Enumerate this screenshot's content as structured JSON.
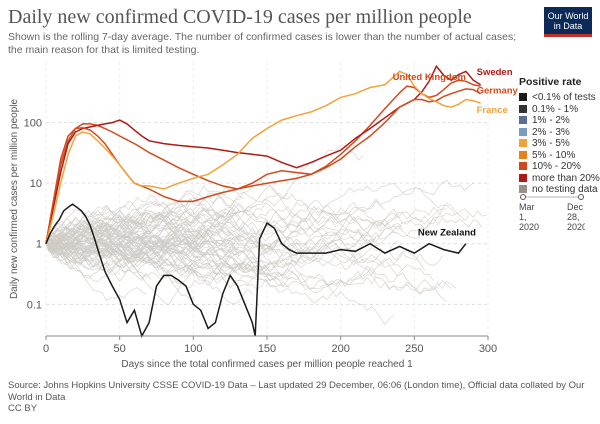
{
  "header": {
    "title": "Daily new confirmed COVID-19 cases per million people",
    "subtitle": "Shown is the rolling 7-day average. The number of confirmed cases is lower than the number of actual cases; the main reason for that is limited testing.",
    "logo_line1": "Our World",
    "logo_line2": "in Data"
  },
  "legend": {
    "title": "Positive rate",
    "items": [
      {
        "label": "<0.1% of tests",
        "color": "#1a1a1a"
      },
      {
        "label": "0.1% - 1%",
        "color": "#333333"
      },
      {
        "label": "1% - 2%",
        "color": "#5b6d97"
      },
      {
        "label": "2% - 3%",
        "color": "#7c9ac4"
      },
      {
        "label": "3% - 5%",
        "color": "#f2a23a"
      },
      {
        "label": "5% - 10%",
        "color": "#e8801d"
      },
      {
        "label": "10% - 20%",
        "color": "#d24a1b"
      },
      {
        "label": "more than 20%",
        "color": "#b01a16"
      },
      {
        "label": "no testing data",
        "color": "#999089"
      }
    ]
  },
  "time_slider": {
    "start_label": "Mar 1, 2020",
    "end_label": "Dec 28, 2020",
    "start_line1": "Mar",
    "start_line2": "1,",
    "start_line3": "2020",
    "end_line1": "Dec",
    "end_line2": "28,",
    "end_line3": "2020"
  },
  "footer": {
    "source": "Source: Johns Hopkins University CSSE COVID-19 Data – Last updated 29 December, 06:06 (London time), Official data collated by Our World in Data",
    "license": "CC BY"
  },
  "chart_data": {
    "type": "line",
    "title": "Daily new confirmed COVID-19 cases per million people",
    "xlabel": "Days since the total confirmed cases per million people reached 1",
    "ylabel": "Daily new confirmed cases per million people",
    "y_scale": "log",
    "xlim": [
      0,
      300
    ],
    "ylim": [
      0.03,
      1000
    ],
    "x_ticks": [
      0,
      50,
      100,
      150,
      200,
      250,
      300
    ],
    "x_tick_labels": [
      "0",
      "50",
      "100",
      "150",
      "200",
      "250",
      "300"
    ],
    "y_ticks": [
      0.1,
      1,
      10,
      100
    ],
    "y_tick_labels": [
      "0.1",
      "1",
      "10",
      "100"
    ],
    "grid": true,
    "series": [
      {
        "name": "United Kingdom",
        "color": "#d24a1b",
        "x": [
          0,
          5,
          10,
          15,
          20,
          25,
          30,
          35,
          40,
          45,
          50,
          55,
          60,
          65,
          70,
          80,
          90,
          100,
          110,
          120,
          130,
          140,
          150,
          160,
          170,
          180,
          190,
          200,
          210,
          220,
          230,
          240,
          245,
          250,
          255,
          260,
          265,
          270,
          275,
          280,
          285,
          290,
          295
        ],
        "y": [
          1,
          5,
          20,
          50,
          80,
          95,
          95,
          90,
          80,
          70,
          60,
          52,
          45,
          38,
          32,
          24,
          18,
          14,
          11,
          9,
          8,
          9,
          10,
          11,
          12,
          14,
          19,
          30,
          50,
          90,
          170,
          310,
          400,
          380,
          300,
          260,
          280,
          350,
          450,
          500,
          480,
          420,
          400
        ]
      },
      {
        "name": "Sweden",
        "color": "#b01a16",
        "x": [
          0,
          5,
          10,
          15,
          20,
          25,
          30,
          35,
          40,
          45,
          50,
          55,
          60,
          65,
          70,
          80,
          90,
          100,
          110,
          120,
          130,
          140,
          150,
          160,
          170,
          180,
          190,
          200,
          210,
          220,
          230,
          240,
          250,
          255,
          260,
          265,
          270,
          275,
          280,
          285,
          290,
          295
        ],
        "y": [
          1,
          4,
          15,
          45,
          70,
          80,
          85,
          90,
          95,
          100,
          110,
          95,
          75,
          60,
          50,
          45,
          42,
          40,
          38,
          35,
          32,
          30,
          28,
          22,
          18,
          22,
          28,
          35,
          55,
          80,
          120,
          180,
          240,
          320,
          480,
          850,
          600,
          500,
          620,
          700,
          500,
          420
        ]
      },
      {
        "name": "Germany",
        "color": "#d24a1b",
        "x": [
          0,
          5,
          10,
          15,
          20,
          25,
          30,
          35,
          40,
          45,
          50,
          55,
          60,
          70,
          80,
          90,
          100,
          110,
          120,
          130,
          140,
          150,
          160,
          170,
          180,
          190,
          200,
          210,
          220,
          230,
          240,
          250,
          255,
          260,
          265,
          270,
          275,
          280,
          285,
          290,
          295
        ],
        "y": [
          1,
          5,
          25,
          60,
          80,
          82,
          75,
          60,
          45,
          30,
          20,
          14,
          10,
          8,
          6,
          5,
          5,
          6,
          7,
          8,
          10,
          14,
          16,
          15,
          14,
          18,
          25,
          40,
          60,
          100,
          180,
          240,
          240,
          220,
          230,
          270,
          300,
          330,
          360,
          350,
          300
        ]
      },
      {
        "name": "France",
        "color": "#f2a23a",
        "x": [
          0,
          5,
          10,
          15,
          20,
          25,
          30,
          35,
          40,
          45,
          50,
          55,
          60,
          65,
          70,
          80,
          90,
          100,
          110,
          120,
          130,
          140,
          150,
          160,
          170,
          180,
          190,
          200,
          210,
          220,
          230,
          240,
          245,
          250,
          255,
          260,
          265,
          270,
          275,
          280,
          285,
          290,
          295
        ],
        "y": [
          1,
          3,
          10,
          30,
          60,
          70,
          65,
          50,
          38,
          28,
          20,
          14,
          10,
          9,
          9,
          8,
          10,
          12,
          14,
          20,
          30,
          55,
          80,
          110,
          130,
          150,
          190,
          260,
          300,
          380,
          420,
          700,
          620,
          400,
          300,
          250,
          220,
          190,
          180,
          200,
          240,
          230,
          210
        ]
      },
      {
        "name": "New Zealand",
        "color": "#1a1a1a",
        "x": [
          0,
          3,
          6,
          9,
          12,
          15,
          18,
          21,
          24,
          27,
          30,
          33,
          36,
          40,
          45,
          50,
          55,
          60,
          65,
          70,
          75,
          80,
          85,
          90,
          95,
          100,
          105,
          110,
          115,
          120,
          125,
          130,
          135,
          140,
          142,
          145,
          150,
          155,
          160,
          165,
          170,
          180,
          190,
          200,
          210,
          220,
          230,
          240,
          250,
          260,
          270,
          280,
          285
        ],
        "y": [
          1,
          1.5,
          2,
          2.5,
          3.5,
          4,
          4.5,
          4,
          3.5,
          2.8,
          2,
          1.2,
          0.7,
          0.35,
          0.2,
          0.12,
          0.05,
          0.08,
          0.03,
          0.05,
          0.2,
          0.3,
          0.3,
          0.25,
          0.2,
          0.1,
          0.08,
          0.04,
          0.05,
          0.15,
          0.3,
          0.2,
          0.1,
          0.05,
          0.03,
          1.2,
          2.2,
          1.8,
          1,
          0.8,
          0.7,
          0.7,
          0.7,
          0.8,
          0.75,
          1,
          0.7,
          0.9,
          0.7,
          1,
          0.8,
          0.7,
          1
        ]
      }
    ],
    "background_series": "many grey lines for other countries",
    "annotations": [
      "United Kingdom",
      "Sweden",
      "Germany",
      "France",
      "New Zealand"
    ]
  }
}
